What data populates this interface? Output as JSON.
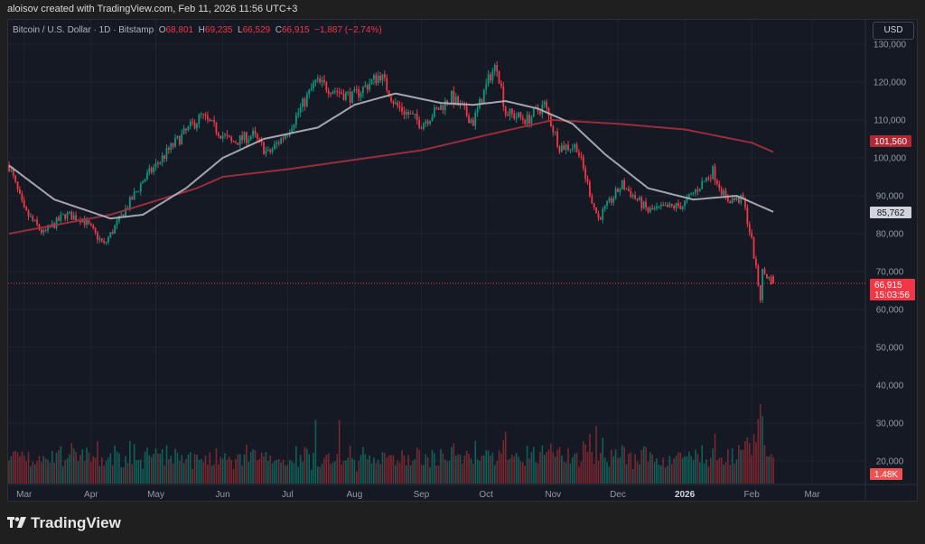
{
  "credit": "aloisov created with TradingView.com, Feb 11, 2026 11:56 UTC+3",
  "legend": {
    "symbol": "Bitcoin / U.S. Dollar · 1D · Bitstamp",
    "o_label": "O",
    "o": "68,801",
    "h_label": "H",
    "h": "69,235",
    "l_label": "L",
    "l": "66,529",
    "c_label": "C",
    "c": "66,915",
    "change": "−1,887 (−2.74%)"
  },
  "currency_button": "USD",
  "brand": "TradingView",
  "chart_data": {
    "type": "candlestick",
    "symbol": "BTCUSD",
    "interval": "1D",
    "x_start": "2025-02-22",
    "x_end": "2026-03-18",
    "ylim": [
      0,
      135000
    ],
    "grid": true,
    "y_ticks": [
      "130,000",
      "120,000",
      "110,000",
      "100,000",
      "90,000",
      "80,000",
      "70,000",
      "60,000",
      "50,000",
      "40,000",
      "30,000",
      "20,000"
    ],
    "y_tick_values": [
      130000,
      120000,
      110000,
      100000,
      90000,
      80000,
      70000,
      60000,
      50000,
      40000,
      30000,
      20000
    ],
    "x_ticks": [
      {
        "label": "Mar",
        "date": "2025-03-01"
      },
      {
        "label": "Apr",
        "date": "2025-04-01"
      },
      {
        "label": "May",
        "date": "2025-05-01"
      },
      {
        "label": "Jun",
        "date": "2025-06-01"
      },
      {
        "label": "Jul",
        "date": "2025-07-01"
      },
      {
        "label": "Aug",
        "date": "2025-08-01"
      },
      {
        "label": "Sep",
        "date": "2025-09-01"
      },
      {
        "label": "Oct",
        "date": "2025-10-01"
      },
      {
        "label": "Nov",
        "date": "2025-11-01"
      },
      {
        "label": "Dec",
        "date": "2025-12-01"
      },
      {
        "label": "2026",
        "date": "2026-01-01",
        "bold": true
      },
      {
        "label": "Feb",
        "date": "2026-02-01"
      },
      {
        "label": "Mar",
        "date": "2026-03-01"
      }
    ],
    "close_path": [
      [
        "2025-02-22",
        98000
      ],
      [
        "2025-03-01",
        86000
      ],
      [
        "2025-03-10",
        80000
      ],
      [
        "2025-03-20",
        85000
      ],
      [
        "2025-03-28",
        84000
      ],
      [
        "2025-04-07",
        77000
      ],
      [
        "2025-04-15",
        84500
      ],
      [
        "2025-04-25",
        94000
      ],
      [
        "2025-05-10",
        104000
      ],
      [
        "2025-05-22",
        111000
      ],
      [
        "2025-06-05",
        104000
      ],
      [
        "2025-06-15",
        106000
      ],
      [
        "2025-06-22",
        101000
      ],
      [
        "2025-07-01",
        107000
      ],
      [
        "2025-07-10",
        116000
      ],
      [
        "2025-07-14",
        120000
      ],
      [
        "2025-07-31",
        116000
      ],
      [
        "2025-08-13",
        122000
      ],
      [
        "2025-08-20",
        114000
      ],
      [
        "2025-09-01",
        109000
      ],
      [
        "2025-09-15",
        116000
      ],
      [
        "2025-09-25",
        109500
      ],
      [
        "2025-10-03",
        122000
      ],
      [
        "2025-10-06",
        124500
      ],
      [
        "2025-10-10",
        112000
      ],
      [
        "2025-10-20",
        110000
      ],
      [
        "2025-10-28",
        114000
      ],
      [
        "2025-11-04",
        103000
      ],
      [
        "2025-11-12",
        103000
      ],
      [
        "2025-11-20",
        87000
      ],
      [
        "2025-11-22",
        84000
      ],
      [
        "2025-12-03",
        93000
      ],
      [
        "2025-12-15",
        86000
      ],
      [
        "2025-12-31",
        87500
      ],
      [
        "2026-01-14",
        96500
      ],
      [
        "2026-01-20",
        89000
      ],
      [
        "2026-01-28",
        89000
      ],
      [
        "2026-02-01",
        78000
      ],
      [
        "2026-02-05",
        63000
      ],
      [
        "2026-02-06",
        70000
      ],
      [
        "2026-02-11",
        66915
      ]
    ],
    "ma_short": {
      "color": "#b2b5be",
      "last": "85,762",
      "path": [
        [
          "2025-02-22",
          98000
        ],
        [
          "2025-03-15",
          89000
        ],
        [
          "2025-04-10",
          84000
        ],
        [
          "2025-04-25",
          85000
        ],
        [
          "2025-05-15",
          92000
        ],
        [
          "2025-06-01",
          100000
        ],
        [
          "2025-06-20",
          105000
        ],
        [
          "2025-07-15",
          108000
        ],
        [
          "2025-08-01",
          114000
        ],
        [
          "2025-08-20",
          117000
        ],
        [
          "2025-09-10",
          114500
        ],
        [
          "2025-09-25",
          114000
        ],
        [
          "2025-10-10",
          115000
        ],
        [
          "2025-10-25",
          113000
        ],
        [
          "2025-11-10",
          109000
        ],
        [
          "2025-11-25",
          101000
        ],
        [
          "2025-12-15",
          92000
        ],
        [
          "2026-01-05",
          89000
        ],
        [
          "2026-01-25",
          90000
        ],
        [
          "2026-02-11",
          85762
        ]
      ]
    },
    "ma_long": {
      "color": "#a8303e",
      "last": "101,560",
      "path": [
        [
          "2025-02-22",
          80000
        ],
        [
          "2025-04-10",
          85000
        ],
        [
          "2025-05-20",
          92000
        ],
        [
          "2025-06-01",
          95000
        ],
        [
          "2025-07-01",
          97000
        ],
        [
          "2025-08-01",
          99500
        ],
        [
          "2025-09-01",
          102000
        ],
        [
          "2025-10-01",
          106000
        ],
        [
          "2025-11-01",
          110000
        ],
        [
          "2025-12-01",
          109000
        ],
        [
          "2026-01-01",
          107500
        ],
        [
          "2026-02-01",
          104000
        ],
        [
          "2026-02-11",
          101560
        ]
      ]
    },
    "last_price": {
      "value": "66,915",
      "countdown": "15:03:56",
      "color": "#f23645"
    },
    "volume": {
      "last": "1.48K",
      "spikes": [
        [
          "2025-07-14",
          3.2
        ],
        [
          "2025-07-25",
          3.2
        ],
        [
          "2025-10-10",
          2.6
        ],
        [
          "2025-11-21",
          2.9
        ],
        [
          "2026-02-05",
          4.0
        ],
        [
          "2026-02-06",
          3.4
        ]
      ]
    },
    "colors": {
      "up": "#089981",
      "down": "#f23645",
      "background": "#151924"
    }
  }
}
